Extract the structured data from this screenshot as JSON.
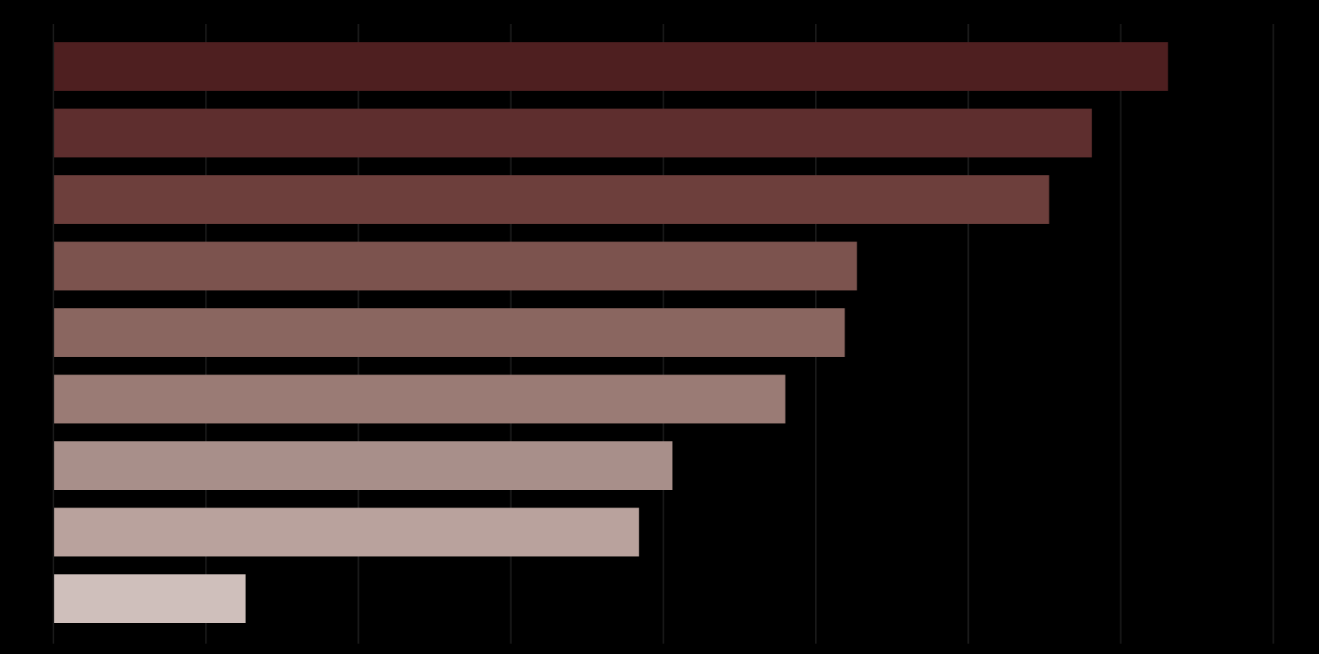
{
  "chart_data": {
    "type": "bar",
    "orientation": "horizontal",
    "categories": [
      "",
      "",
      "",
      "",
      "",
      "",
      "",
      "",
      ""
    ],
    "values": [
      7.31,
      6.81,
      6.53,
      5.27,
      5.19,
      4.8,
      4.06,
      3.84,
      1.26
    ],
    "xlim": [
      0,
      8.3
    ],
    "x_gridlines": [
      1,
      2,
      3,
      4,
      5,
      6,
      7,
      8
    ],
    "grid": true,
    "title": "",
    "xlabel": "",
    "ylabel": "",
    "colors": [
      "#4e1f20",
      "#5e2e2e",
      "#6d3f3c",
      "#7c534e",
      "#8a6660",
      "#9a7b75",
      "#a88f8a",
      "#b9a29d",
      "#cfbfbb"
    ],
    "background": "#000000",
    "gridline_color": "#1a1a1a"
  }
}
